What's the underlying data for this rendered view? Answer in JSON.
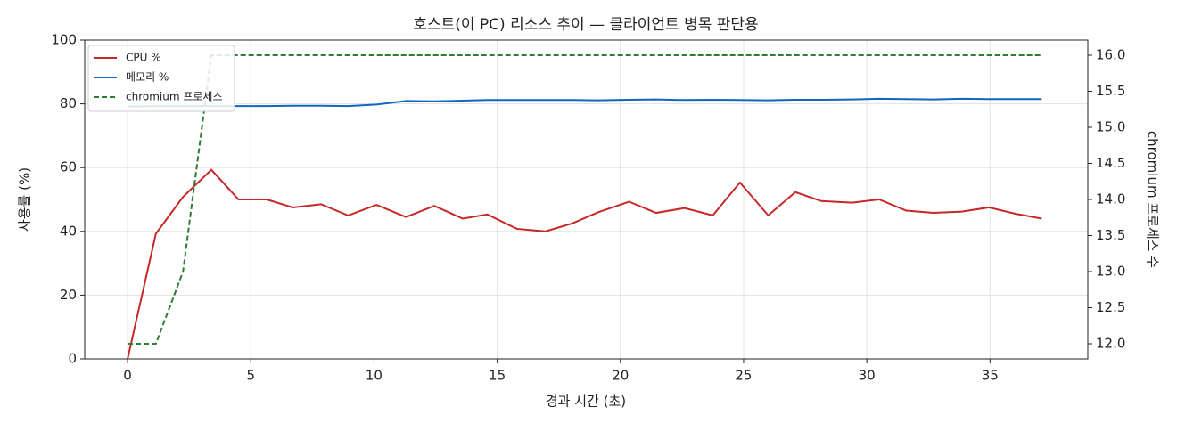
{
  "chart_data": {
    "type": "line",
    "title": "호스트(이 PC) 리소스 추이 — 클라이언트 병목 판단용",
    "x_label": "경과 시간 (초)",
    "y_label": "사용률 (%)",
    "y2_label": "chromium 프로세스 수",
    "x": [
      0,
      1.15,
      2.25,
      3.4,
      4.5,
      5.65,
      6.7,
      7.85,
      8.95,
      10.1,
      11.3,
      12.45,
      13.6,
      14.6,
      15.8,
      16.95,
      18.05,
      19.1,
      20.35,
      21.45,
      22.6,
      23.75,
      24.85,
      26.0,
      27.1,
      28.15,
      29.4,
      30.5,
      31.6,
      32.7,
      33.85,
      34.95,
      36.05,
      37.1
    ],
    "series": [
      {
        "name": "CPU %",
        "color": "#c62828",
        "dash": false,
        "values": [
          0,
          39.3,
          50.8,
          59.3,
          50,
          50,
          47.5,
          48.5,
          45,
          48.3,
          44.5,
          48,
          44,
          45.3,
          40.8,
          40,
          42.5,
          46,
          49.3,
          45.8,
          47.3,
          45,
          55.3,
          45,
          52.3,
          49.5,
          49,
          50,
          46.5,
          45.8,
          46.2,
          47.5,
          45.5,
          44
        ]
      },
      {
        "name": "메모리 %",
        "color": "#1565c0",
        "dash": false,
        "values": [
          79.2,
          79.3,
          79.3,
          79.3,
          79.3,
          79.3,
          79.4,
          79.4,
          79.3,
          79.8,
          80.9,
          80.8,
          81.0,
          81.2,
          81.2,
          81.2,
          81.2,
          81.1,
          81.3,
          81.4,
          81.2,
          81.3,
          81.2,
          81.1,
          81.3,
          81.3,
          81.4,
          81.6,
          81.5,
          81.4,
          81.6,
          81.5,
          81.5,
          81.5
        ]
      },
      {
        "name": "chromium 프로세스",
        "color": "#2e7d32",
        "dash": true,
        "axis": "y2",
        "values": [
          12,
          12,
          13,
          16,
          16,
          16,
          16,
          16,
          16,
          16,
          16,
          16,
          16,
          16,
          16,
          16,
          16,
          16,
          16,
          16,
          16,
          16,
          16,
          16,
          16,
          16,
          16,
          16,
          16,
          16,
          16,
          16,
          16,
          16
        ]
      }
    ],
    "xlim": [
      -1.74,
      38.97
    ],
    "xticks": [
      0,
      5,
      10,
      15,
      20,
      25,
      30,
      35
    ],
    "ylim": [
      0,
      100
    ],
    "yticks": [
      0,
      20,
      40,
      60,
      80,
      100
    ],
    "y2lim": [
      11.79,
      16.21
    ],
    "y2ticks": [
      {
        "value": 12,
        "label": "12.0"
      },
      {
        "value": 12.5,
        "label": "12.5"
      },
      {
        "value": 13,
        "label": "13.0"
      },
      {
        "value": 13.5,
        "label": "13.5"
      },
      {
        "value": 14,
        "label": "14.0"
      },
      {
        "value": 14.5,
        "label": "14.5"
      },
      {
        "value": 15,
        "label": "15.0"
      },
      {
        "value": 15.5,
        "label": "15.5"
      },
      {
        "value": 16,
        "label": "16.0"
      }
    ],
    "grid": true,
    "legend": "upper left"
  }
}
